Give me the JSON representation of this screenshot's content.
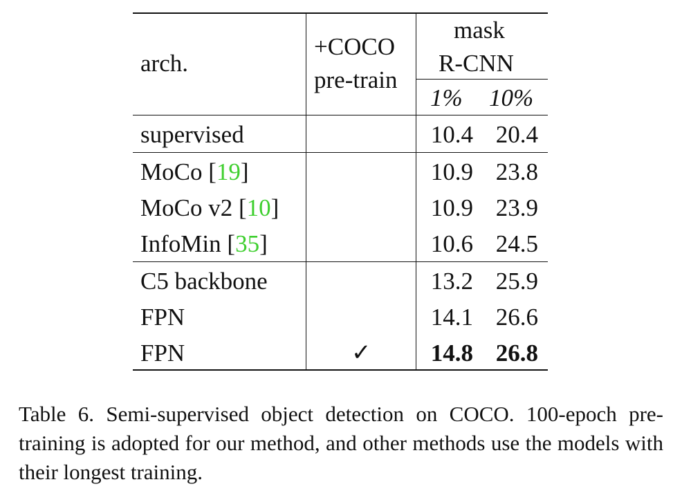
{
  "table": {
    "headers": {
      "arch": "arch.",
      "coco_line1": "+COCO",
      "coco_line2": "pre-train",
      "group_line1": "mask",
      "group_line2": "R-CNN",
      "col_1pct": "1%",
      "col_10pct": "10%"
    },
    "rows": [
      {
        "arch": "supervised",
        "coco": "",
        "v1": "10.4",
        "v10": "20.4"
      },
      {
        "arch": "MoCo",
        "cite": "19",
        "coco": "",
        "v1": "10.9",
        "v10": "23.8"
      },
      {
        "arch": "MoCo v2",
        "cite": "10",
        "coco": "",
        "v1": "10.9",
        "v10": "23.9"
      },
      {
        "arch": "InfoMin",
        "cite": "35",
        "coco": "",
        "v1": "10.6",
        "v10": "24.5"
      },
      {
        "arch": "C5 backbone",
        "coco": "",
        "v1": "13.2",
        "v10": "25.9"
      },
      {
        "arch": "FPN",
        "coco": "",
        "v1": "14.1",
        "v10": "26.6"
      },
      {
        "arch": "FPN",
        "coco": "✓",
        "v1": "14.8",
        "v10": "26.8",
        "bold": true
      }
    ]
  },
  "caption": "Table 6. Semi-supervised object detection on COCO. 100-epoch pre-training is adopted for our method, and other methods use the models with their longest training.",
  "colors": {
    "citation": "#3fcf2f",
    "text": "#111111"
  }
}
